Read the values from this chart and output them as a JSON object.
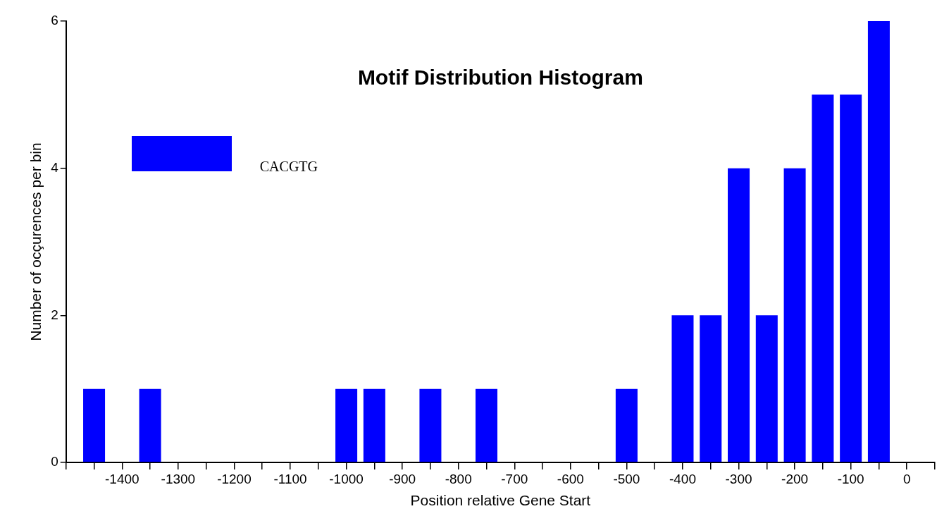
{
  "chart_data": {
    "type": "histogram",
    "title": "Motif Distribution Histogram",
    "xlabel": "Position relative Gene Start",
    "ylabel": "Number of ocçurences per bin",
    "bins": [
      -1475,
      -1425,
      -1375,
      -1325,
      -1275,
      -1225,
      -1175,
      -1125,
      -1075,
      -1025,
      -975,
      -925,
      -875,
      -825,
      -775,
      -725,
      -675,
      -625,
      -575,
      -525,
      -475,
      -425,
      -375,
      -325,
      -275,
      -225,
      -175,
      -125,
      -75,
      -25
    ],
    "series": [
      {
        "name": "CACGTG",
        "color": "#0000ff",
        "values": [
          1,
          0,
          1,
          0,
          0,
          0,
          0,
          0,
          0,
          1,
          1,
          0,
          1,
          0,
          1,
          0,
          0,
          0,
          0,
          1,
          0,
          2,
          2,
          4,
          2,
          4,
          5,
          5,
          6
        ]
      }
    ],
    "xlim": [
      -1500,
      50
    ],
    "xticks": [
      {
        "value": -1500,
        "label": null
      },
      {
        "value": -1450,
        "label": null
      },
      -1400,
      {
        "value": -1350,
        "label": null
      },
      -1300,
      {
        "value": -1250,
        "label": null
      },
      -1200,
      {
        "value": -1150,
        "label": null
      },
      -1100,
      {
        "value": -1050,
        "label": null
      },
      -1000,
      {
        "value": -950,
        "label": null
      },
      -900,
      {
        "value": -850,
        "label": null
      },
      -800,
      {
        "value": -750,
        "label": null
      },
      -700,
      {
        "value": -650,
        "label": null
      },
      -600,
      {
        "value": -550,
        "label": null
      },
      -500,
      {
        "value": -450,
        "label": null
      },
      -400,
      {
        "value": -350,
        "label": null
      },
      -300,
      {
        "value": -250,
        "label": null
      },
      -200,
      {
        "value": -150,
        "label": null
      },
      -100,
      {
        "value": -50,
        "label": null
      },
      0,
      {
        "value": 50,
        "label": null
      }
    ],
    "ylim": [
      0,
      6
    ],
    "yticks": [
      0,
      2,
      4,
      6
    ],
    "grid": false,
    "legend": "top left"
  }
}
